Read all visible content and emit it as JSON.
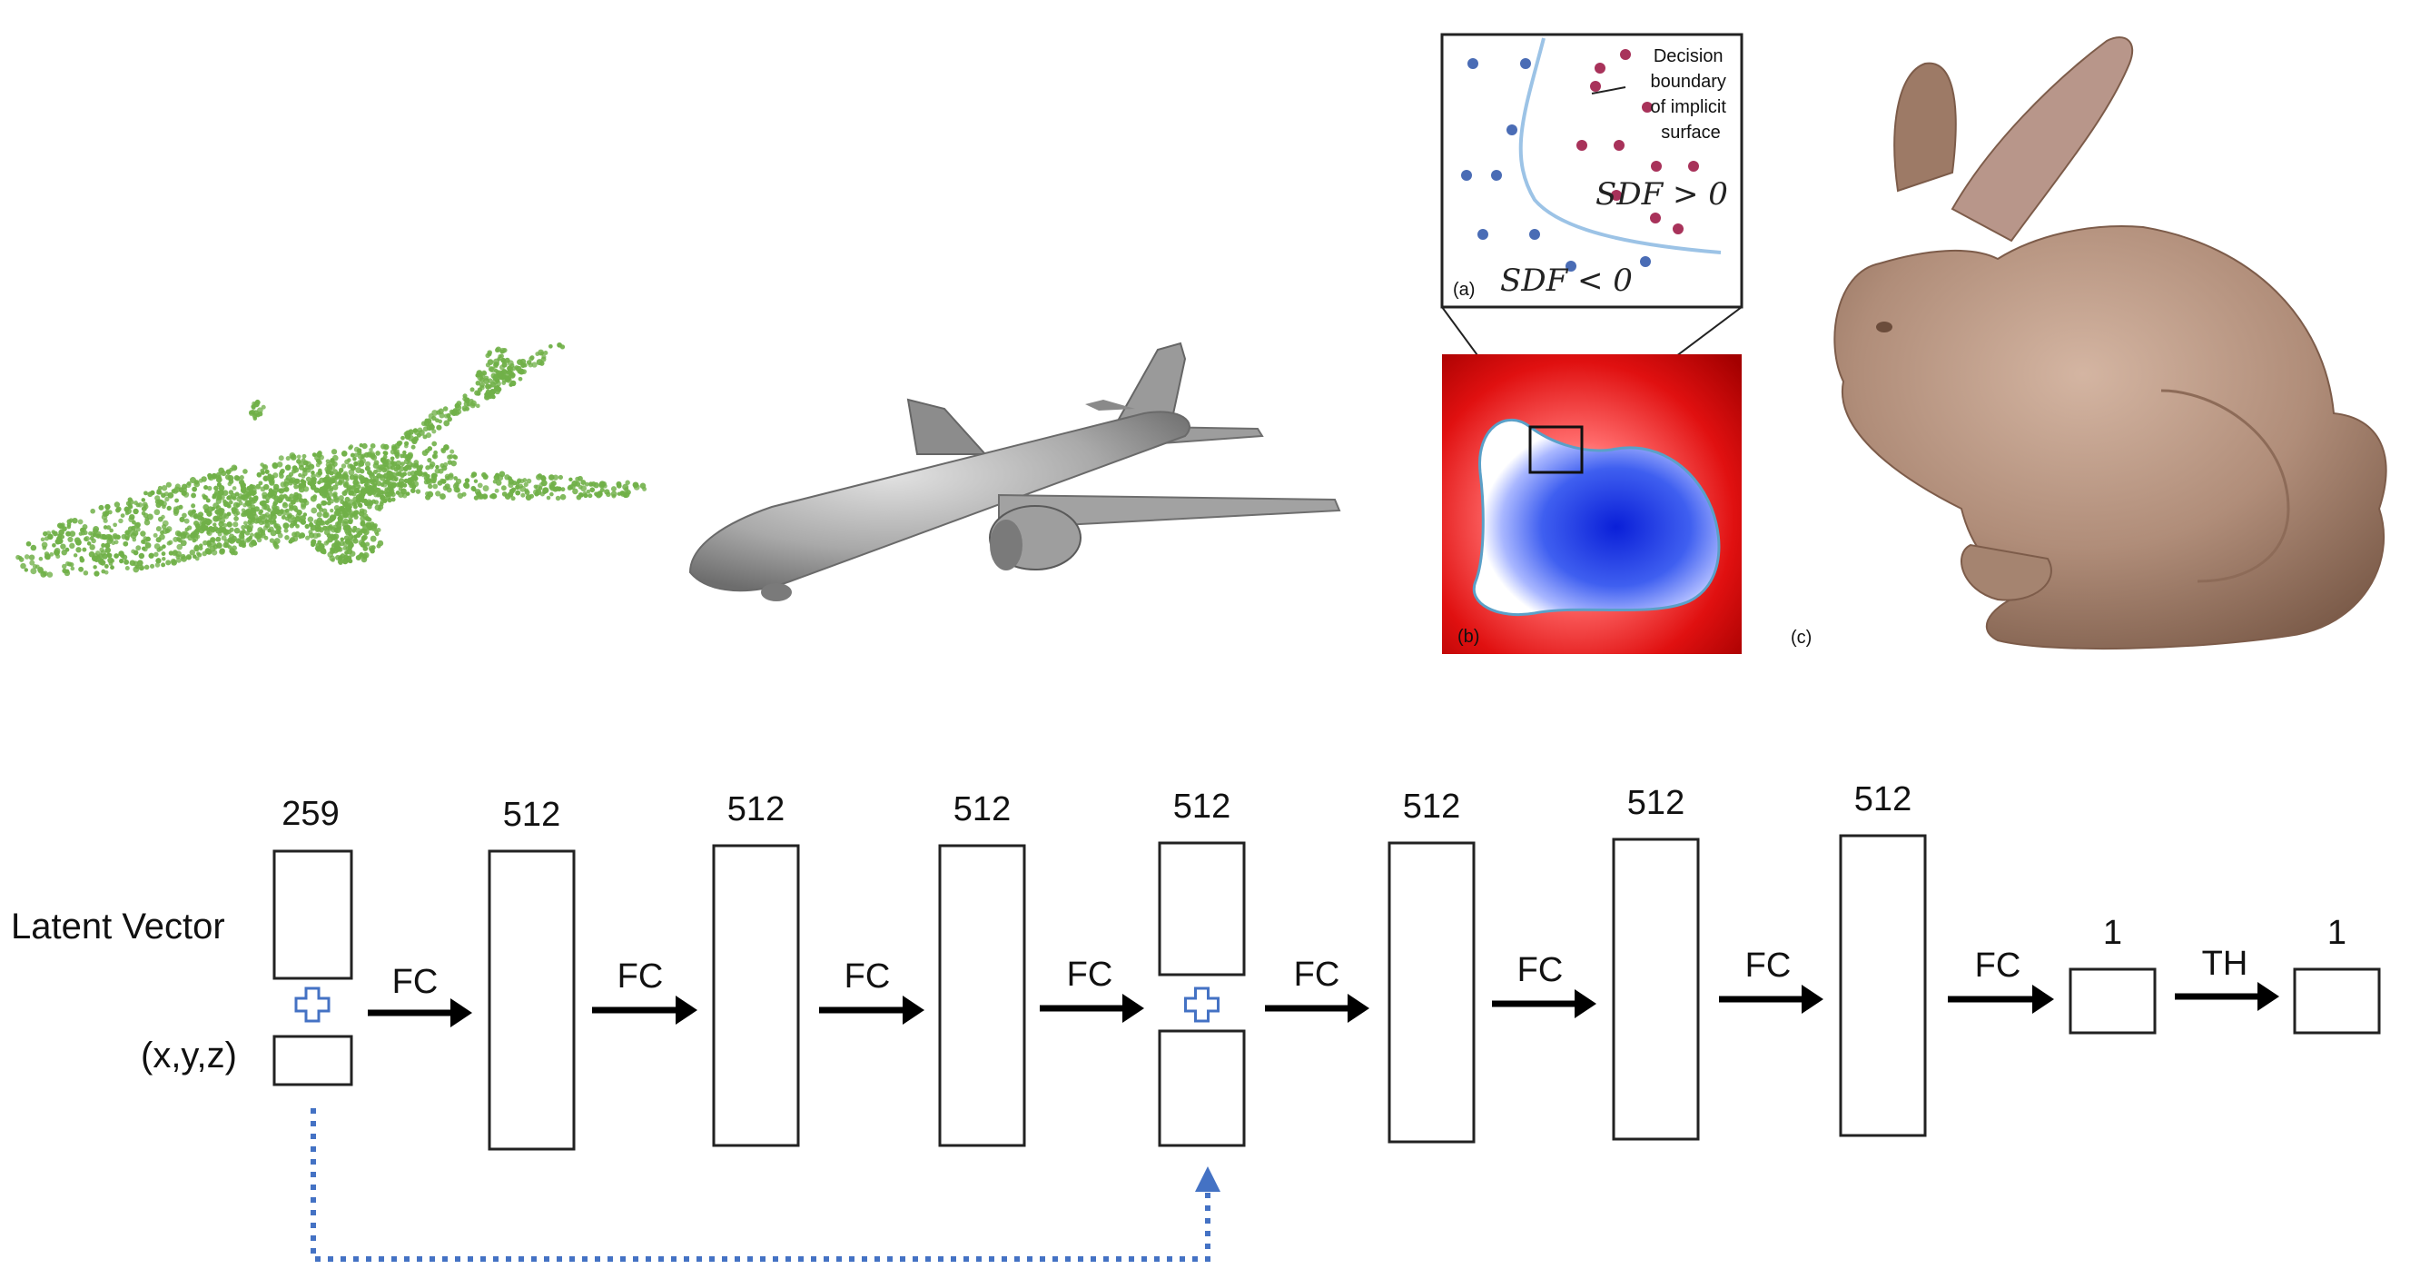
{
  "colors": {
    "point_cloud": "#70b048",
    "airplane": "#a9a9a9",
    "bunny": "#b08d79",
    "sdf_negative": "#2f4fe0",
    "sdf_positive": "#e01010",
    "boundary": "#9cc3e6",
    "dot_inside": "#4a6cb5",
    "dot_outside": "#a8325a",
    "skip_arrow": "#4472c4",
    "box_stroke": "#222222"
  },
  "sdf_panel": {
    "inset_label": "(a)",
    "decision_text": [
      "Decision",
      "boundary",
      "of implicit",
      "surface"
    ],
    "sdf_positive": "SDF > 0",
    "sdf_negative": "SDF < 0",
    "slice_label": "(b)",
    "bunny_label": "(c)"
  },
  "network": {
    "latent_label": "Latent Vector",
    "xyz_label": "(x,y,z)",
    "plus_icon": "plus-icon",
    "input_size": "259",
    "layers": [
      {
        "size": "512",
        "op": "FC"
      },
      {
        "size": "512",
        "op": "FC"
      },
      {
        "size": "512",
        "op": "FC"
      },
      {
        "size": "512",
        "op": "FC"
      },
      {
        "size": "512",
        "op": "FC"
      },
      {
        "size": "512",
        "op": "FC"
      },
      {
        "size": "512",
        "op": "FC"
      },
      {
        "size": "1",
        "op": "FC"
      },
      {
        "size": "1",
        "op": "TH"
      }
    ]
  }
}
